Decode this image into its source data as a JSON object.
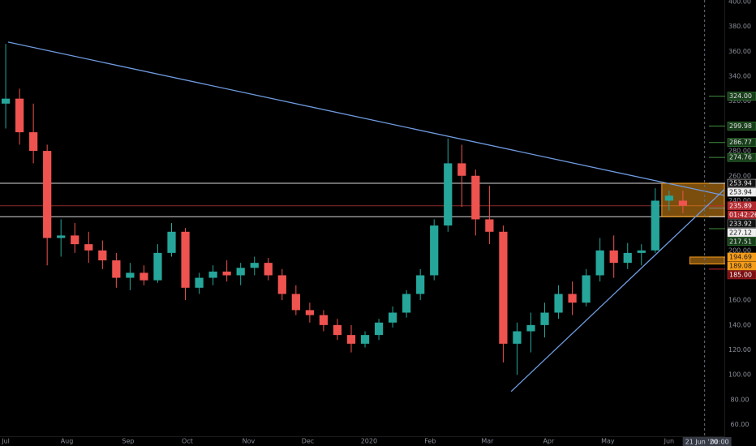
{
  "chart_data": {
    "type": "candlestick",
    "background": "#000000",
    "up_color": "#26a69a",
    "down_color": "#ef5350",
    "grid": false,
    "x": [
      0,
      7,
      14,
      21,
      28,
      35,
      42,
      49,
      56,
      63,
      70,
      77,
      84,
      91,
      98,
      105,
      112,
      119,
      126,
      133,
      140,
      147,
      154,
      161,
      168,
      175,
      182,
      189,
      196,
      203,
      210,
      217,
      224,
      231,
      238,
      245,
      252,
      259,
      266,
      273,
      280,
      287,
      294,
      301,
      308,
      315,
      322,
      329,
      336,
      343
    ],
    "open": [
      318,
      322,
      295,
      280,
      210,
      212,
      205,
      200,
      192,
      178,
      182,
      176,
      198,
      215,
      170,
      178,
      183,
      180,
      186,
      190,
      180,
      165,
      152,
      148,
      140,
      132,
      125,
      132,
      142,
      150,
      165,
      180,
      220,
      270,
      260,
      225,
      215,
      125,
      135,
      140,
      150,
      165,
      158,
      180,
      200,
      190,
      198,
      200,
      240,
      240
    ],
    "high": [
      366,
      330,
      318,
      285,
      225,
      222,
      215,
      208,
      198,
      190,
      188,
      205,
      222,
      218,
      182,
      188,
      192,
      190,
      195,
      194,
      185,
      172,
      158,
      152,
      145,
      140,
      135,
      145,
      155,
      168,
      185,
      225,
      290,
      285,
      265,
      252,
      220,
      142,
      150,
      158,
      172,
      175,
      185,
      210,
      212,
      206,
      205,
      250,
      248,
      248
    ],
    "low": [
      298,
      285,
      270,
      188,
      195,
      198,
      190,
      185,
      170,
      168,
      172,
      174,
      195,
      160,
      165,
      172,
      175,
      172,
      180,
      176,
      160,
      148,
      142,
      135,
      128,
      118,
      122,
      128,
      138,
      146,
      160,
      176,
      215,
      235,
      212,
      205,
      110,
      100,
      118,
      130,
      145,
      148,
      155,
      175,
      178,
      185,
      188,
      198,
      232,
      230
    ],
    "close": [
      322,
      295,
      280,
      210,
      212,
      205,
      200,
      192,
      178,
      182,
      176,
      198,
      215,
      170,
      178,
      183,
      180,
      186,
      190,
      180,
      165,
      152,
      148,
      140,
      132,
      125,
      132,
      142,
      150,
      165,
      180,
      220,
      270,
      260,
      225,
      215,
      125,
      135,
      140,
      150,
      165,
      158,
      180,
      200,
      190,
      198,
      200,
      240,
      244,
      236
    ],
    "xlim": [
      -2.9,
      364
    ],
    "ylim": [
      50.6,
      401.3
    ],
    "xticks": [
      {
        "value": 0,
        "label": "Jul"
      },
      {
        "value": 31,
        "label": "Aug"
      },
      {
        "value": 62,
        "label": "Sep"
      },
      {
        "value": 92,
        "label": "Oct"
      },
      {
        "value": 123,
        "label": "Nov"
      },
      {
        "value": 153,
        "label": "Dec"
      },
      {
        "value": 184,
        "label": "2020"
      },
      {
        "value": 215,
        "label": "Feb"
      },
      {
        "value": 244,
        "label": "Mar"
      },
      {
        "value": 275,
        "label": "Apr"
      },
      {
        "value": 305,
        "label": "May"
      },
      {
        "value": 336,
        "label": "Jun"
      }
    ],
    "yticks": [
      {
        "value": 60,
        "label": "60.00"
      },
      {
        "value": 80,
        "label": "80.00"
      },
      {
        "value": 100,
        "label": "100.00"
      },
      {
        "value": 120,
        "label": "120.00"
      },
      {
        "value": 140,
        "label": "140.00"
      },
      {
        "value": 160,
        "label": "160.00"
      },
      {
        "value": 180,
        "label": "180.00"
      },
      {
        "value": 200,
        "label": "200.00"
      },
      {
        "value": 220,
        "label": "220.00"
      },
      {
        "value": 240,
        "label": "240.00"
      },
      {
        "value": 260,
        "label": "260.00"
      },
      {
        "value": 280,
        "label": "280.00"
      },
      {
        "value": 300,
        "label": "300.00"
      },
      {
        "value": 320,
        "label": "320.00"
      },
      {
        "value": 340,
        "label": "340.00"
      },
      {
        "value": 360,
        "label": "360.00"
      },
      {
        "value": 380,
        "label": "380.00"
      },
      {
        "value": 400,
        "label": "400.00"
      }
    ],
    "trendlines": [
      {
        "x1": 1.2,
        "y1": 367.5,
        "x2": 364,
        "y2": 244.2,
        "color": "#6f9be0"
      },
      {
        "x1": 256,
        "y1": 86.6,
        "x2": 364,
        "y2": 249,
        "color": "#6f9be0"
      }
    ],
    "hlines": [
      {
        "value": 253.94,
        "color": "#d8d8d8"
      },
      {
        "value": 235.89,
        "color": "#8c2a2a"
      },
      {
        "value": 227.12,
        "color": "#d8d8d8"
      }
    ],
    "boxes": [
      {
        "x1": 332.3,
        "x2": 364,
        "y1": 227.12,
        "y2": 253.94,
        "color": "#f59c1a"
      },
      {
        "x1": 346.5,
        "x2": 364,
        "y1": 189.08,
        "y2": 194.69,
        "color": "#f59c1a"
      }
    ],
    "price_labels": [
      {
        "value": 324,
        "label": "324.00",
        "bg": "#173d1a",
        "fg": "#e0e0e0",
        "line": "#3f8f3f"
      },
      {
        "value": 299.98,
        "label": "299.98",
        "bg": "#173d1a",
        "fg": "#e0e0e0",
        "line": "#3f8f3f"
      },
      {
        "value": 286.77,
        "label": "286.77",
        "bg": "#173d1a",
        "fg": "#e0e0e0",
        "line": "#3f8f3f"
      },
      {
        "value": 274.76,
        "label": "274.76",
        "bg": "#173d1a",
        "fg": "#e0e0e0",
        "line": "#3f8f3f"
      },
      {
        "value": 253.94,
        "label": "253.94",
        "bg": "#111111",
        "fg": "#f0f0f0",
        "line": "#d8d8d8"
      },
      {
        "value": 253.94,
        "label": "253.94",
        "bg": "#f0f0f0",
        "fg": "#111111",
        "line": "#d8d8d8"
      },
      {
        "value": 235.89,
        "label": "235.89",
        "bg": "#b22a30",
        "fg": "#ffffff",
        "line": "#b22a30"
      },
      {
        "value": 233.92,
        "label": "233.92",
        "bg": "#111111",
        "fg": "#f0f0f0",
        "line": "#888888"
      },
      {
        "value": 227.12,
        "label": "227.12",
        "bg": "#f0f0f0",
        "fg": "#111111",
        "line": "#d8d8d8"
      },
      {
        "value": 217.51,
        "label": "217.51",
        "bg": "#173d1a",
        "fg": "#e0e0e0",
        "line": "#3f8f3f"
      },
      {
        "value": 194.69,
        "label": "194.69",
        "bg": "#f59c1a",
        "fg": "#1a1a1a",
        "line": "#f59c1a"
      },
      {
        "value": 189.08,
        "label": "189.08",
        "bg": "#f59c1a",
        "fg": "#1a1a1a",
        "line": "#f59c1a"
      },
      {
        "value": 185,
        "label": "185.00",
        "bg": "#7a0f12",
        "fg": "#ffffff",
        "line": "#c0282d"
      }
    ],
    "countdown": "01:42:26",
    "crosshair": {
      "x": 354,
      "date": "21 Jun '20",
      "time": "00:00"
    }
  }
}
